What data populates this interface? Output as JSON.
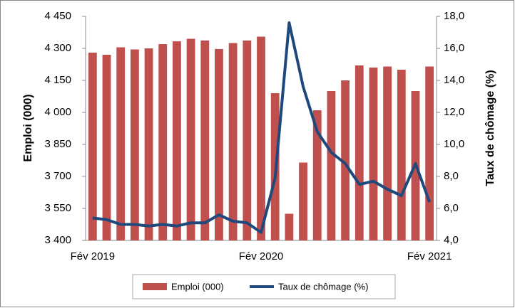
{
  "chart_data": {
    "type": "bar-line",
    "categories": [
      "Fév 2019",
      null,
      null,
      null,
      null,
      null,
      null,
      null,
      null,
      null,
      null,
      null,
      "Fév 2020",
      null,
      null,
      null,
      null,
      null,
      null,
      null,
      null,
      null,
      null,
      null,
      "Fév 2021"
    ],
    "y_label": "Emploi (000)",
    "y2_label": "Taux de chômage (%)",
    "series": [
      {
        "name": "Emploi (000)",
        "type": "bar",
        "color": "#c0504d",
        "values": [
          4280,
          4270,
          4305,
          4295,
          4300,
          4320,
          4333,
          4345,
          4337,
          4297,
          4325,
          4337,
          4355,
          4090,
          3525,
          3765,
          4010,
          4100,
          4150,
          4220,
          4210,
          4215,
          4200,
          4100,
          4215
        ]
      },
      {
        "name": "Taux de chômage (%)",
        "type": "line",
        "axis": "y2",
        "color": "#1f497d",
        "values": [
          5.4,
          5.3,
          5.0,
          5.0,
          4.9,
          5.0,
          4.9,
          5.1,
          5.1,
          5.6,
          5.2,
          5.1,
          4.5,
          7.9,
          17.6,
          13.6,
          10.8,
          9.5,
          8.8,
          7.5,
          7.7,
          7.2,
          6.8,
          8.8,
          6.4
        ]
      }
    ],
    "ylim": [
      3400,
      4450
    ],
    "yticks": [
      {
        "value": 3400,
        "label": "3 400"
      },
      {
        "value": 3550,
        "label": "3 550"
      },
      {
        "value": 3700,
        "label": "3 700"
      },
      {
        "value": 3850,
        "label": "3 850"
      },
      {
        "value": 4000,
        "label": "4 000"
      },
      {
        "value": 4150,
        "label": "4 150"
      },
      {
        "value": 4300,
        "label": "4 300"
      },
      {
        "value": 4450,
        "label": "4 450"
      }
    ],
    "y2lim": [
      4,
      18
    ],
    "y2ticks": [
      {
        "value": 4,
        "label": "4,0"
      },
      {
        "value": 6,
        "label": "6,0"
      },
      {
        "value": 8,
        "label": "8,0"
      },
      {
        "value": 10,
        "label": "10,0"
      },
      {
        "value": 12,
        "label": "12,0"
      },
      {
        "value": 14,
        "label": "14,0"
      },
      {
        "value": 16,
        "label": "16,0"
      },
      {
        "value": 18,
        "label": "18,0"
      }
    ],
    "grid": false,
    "legend": "bottom"
  }
}
